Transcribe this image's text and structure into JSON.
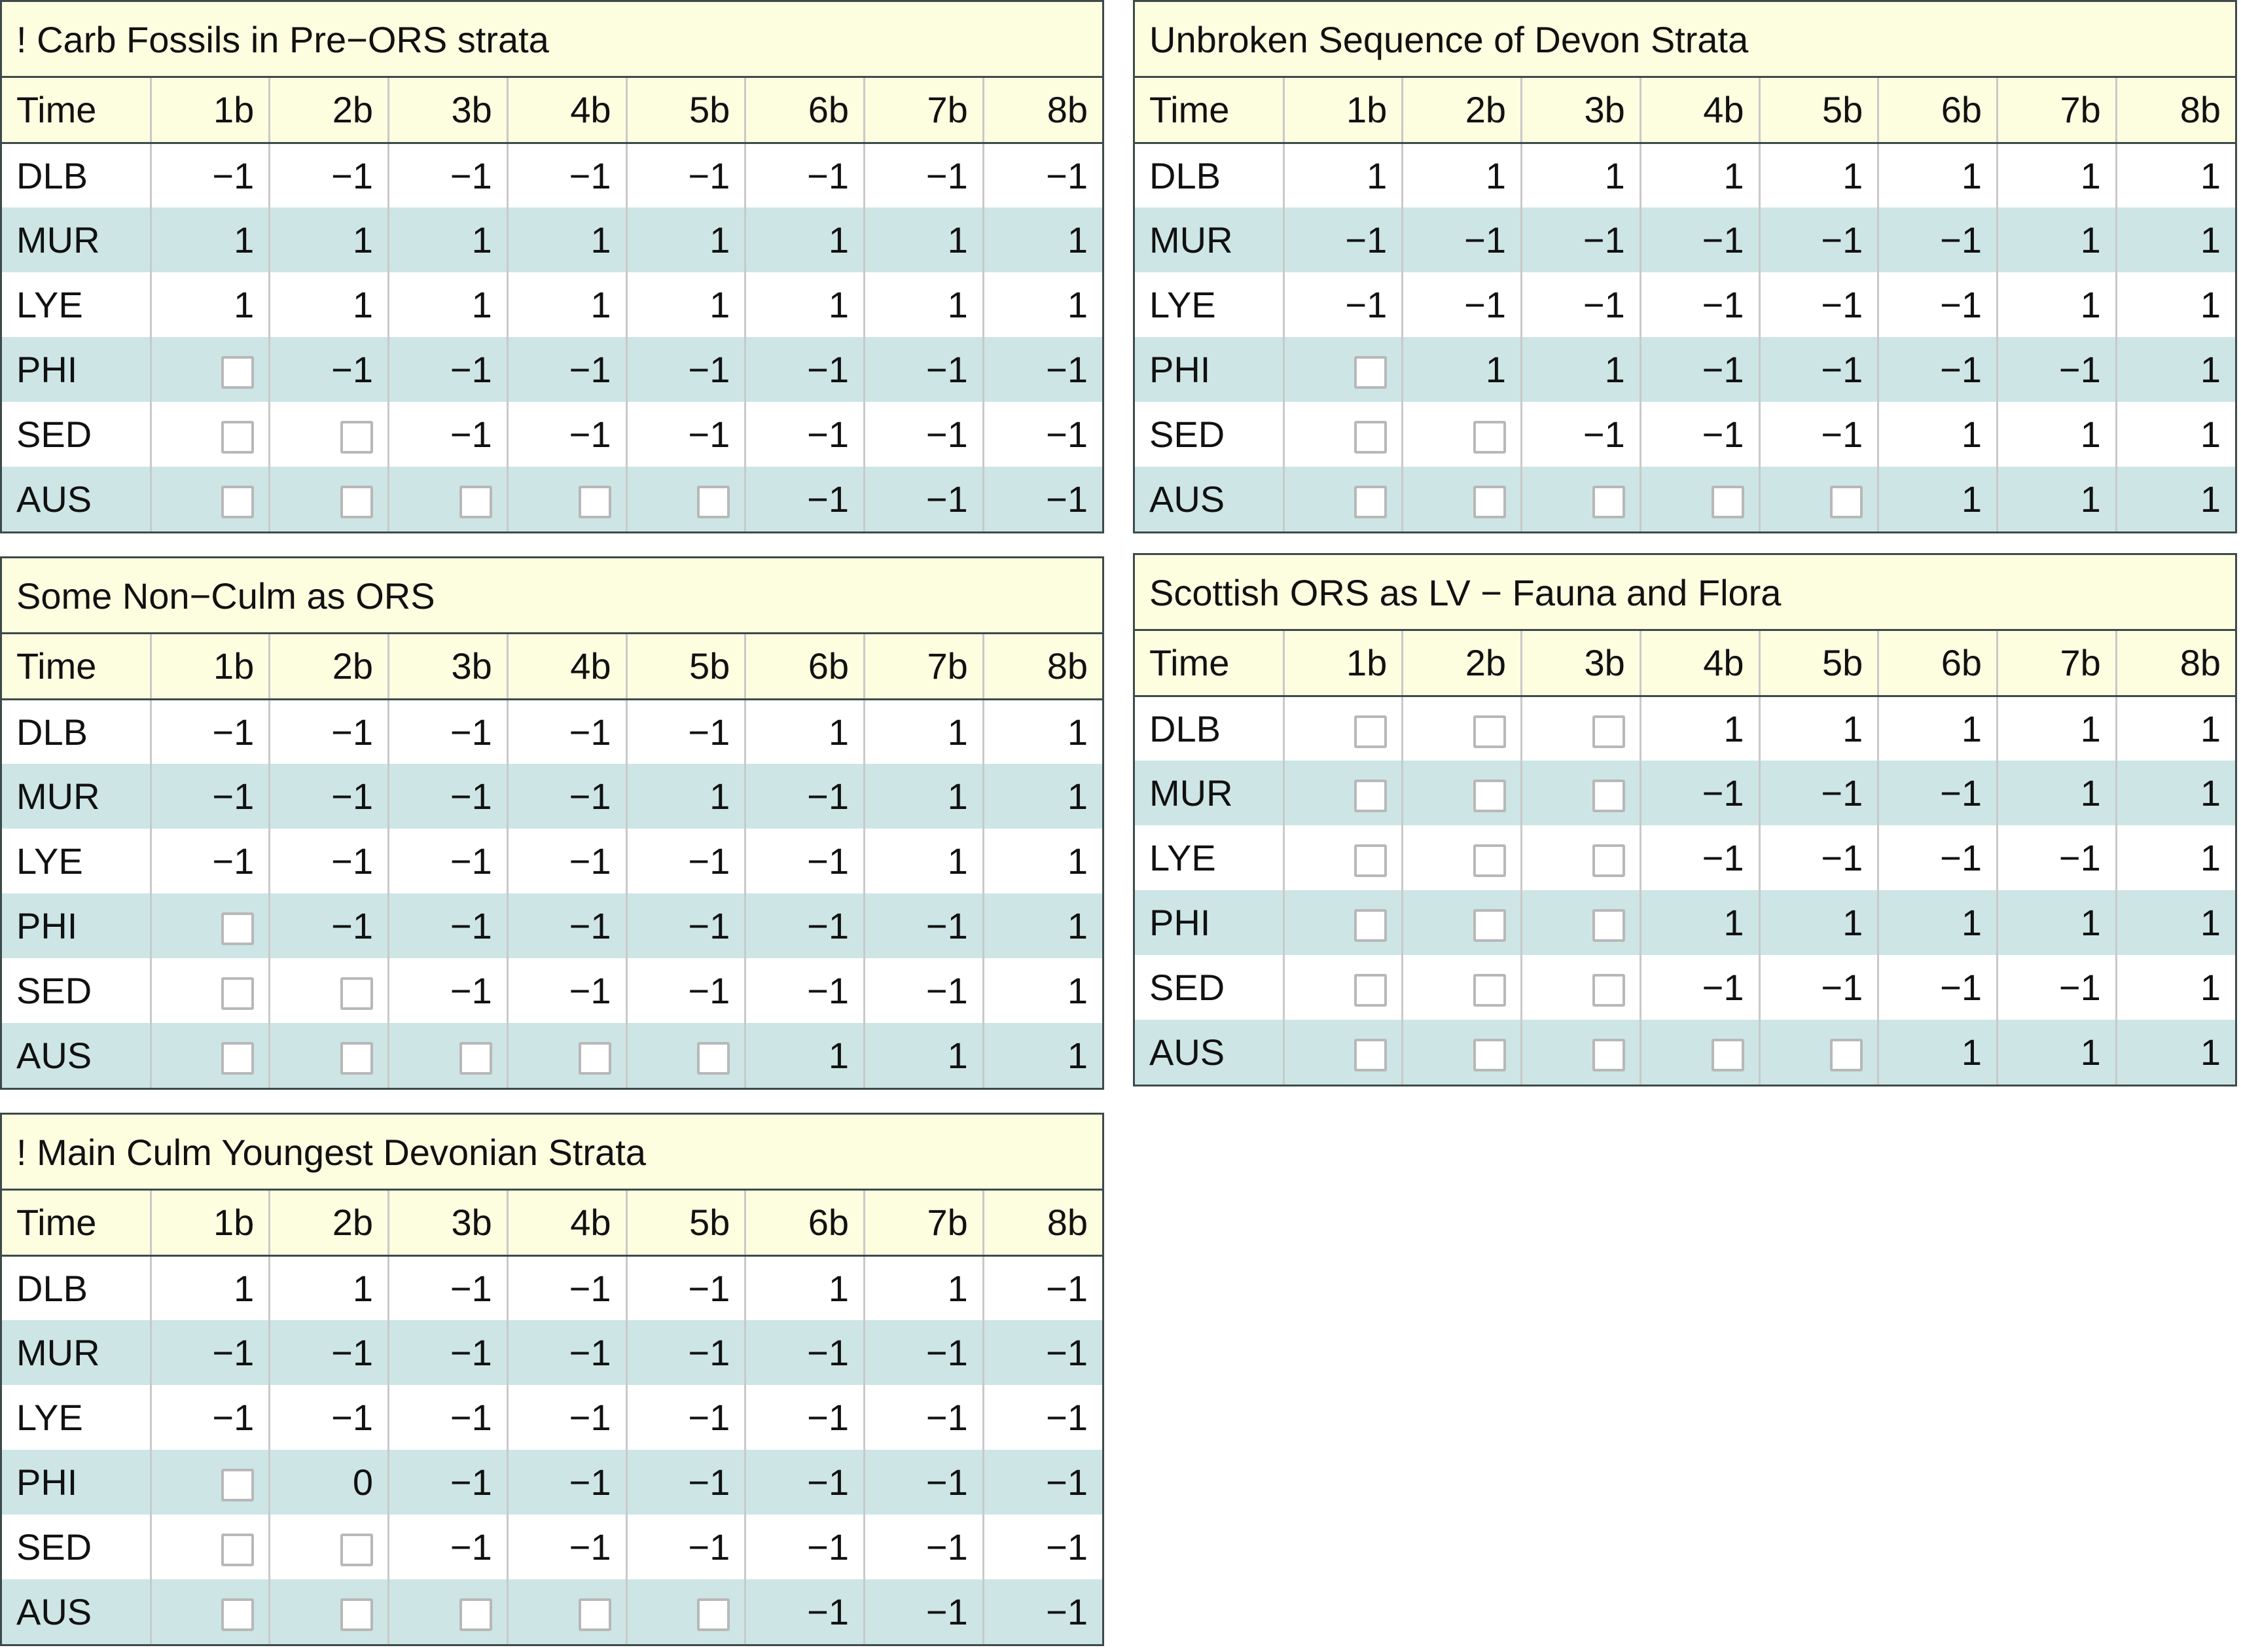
{
  "columns": [
    "Time",
    "1b",
    "2b",
    "3b",
    "4b",
    "5b",
    "6b",
    "7b",
    "8b"
  ],
  "tables": [
    {
      "title": "! Carb Fossils in Pre−ORS strata",
      "rows": [
        {
          "label": "DLB",
          "cells": [
            "−1",
            "−1",
            "−1",
            "−1",
            "−1",
            "−1",
            "−1",
            "−1"
          ]
        },
        {
          "label": "MUR",
          "cells": [
            "1",
            "1",
            "1",
            "1",
            "1",
            "1",
            "1",
            "1"
          ]
        },
        {
          "label": "LYE",
          "cells": [
            "1",
            "1",
            "1",
            "1",
            "1",
            "1",
            "1",
            "1"
          ]
        },
        {
          "label": "PHI",
          "cells": [
            null,
            "−1",
            "−1",
            "−1",
            "−1",
            "−1",
            "−1",
            "−1"
          ]
        },
        {
          "label": "SED",
          "cells": [
            null,
            null,
            "−1",
            "−1",
            "−1",
            "−1",
            "−1",
            "−1"
          ]
        },
        {
          "label": "AUS",
          "cells": [
            null,
            null,
            null,
            null,
            null,
            "−1",
            "−1",
            "−1"
          ]
        }
      ]
    },
    {
      "title": "Unbroken Sequence of Devon Strata",
      "rows": [
        {
          "label": "DLB",
          "cells": [
            "1",
            "1",
            "1",
            "1",
            "1",
            "1",
            "1",
            "1"
          ]
        },
        {
          "label": "MUR",
          "cells": [
            "−1",
            "−1",
            "−1",
            "−1",
            "−1",
            "−1",
            "1",
            "1"
          ]
        },
        {
          "label": "LYE",
          "cells": [
            "−1",
            "−1",
            "−1",
            "−1",
            "−1",
            "−1",
            "1",
            "1"
          ]
        },
        {
          "label": "PHI",
          "cells": [
            null,
            "1",
            "1",
            "−1",
            "−1",
            "−1",
            "−1",
            "1"
          ]
        },
        {
          "label": "SED",
          "cells": [
            null,
            null,
            "−1",
            "−1",
            "−1",
            "1",
            "1",
            "1"
          ]
        },
        {
          "label": "AUS",
          "cells": [
            null,
            null,
            null,
            null,
            null,
            "1",
            "1",
            "1"
          ]
        }
      ]
    },
    {
      "title": "Some Non−Culm as ORS",
      "rows": [
        {
          "label": "DLB",
          "cells": [
            "−1",
            "−1",
            "−1",
            "−1",
            "−1",
            "1",
            "1",
            "1"
          ]
        },
        {
          "label": "MUR",
          "cells": [
            "−1",
            "−1",
            "−1",
            "−1",
            "1",
            "−1",
            "1",
            "1"
          ]
        },
        {
          "label": "LYE",
          "cells": [
            "−1",
            "−1",
            "−1",
            "−1",
            "−1",
            "−1",
            "1",
            "1"
          ]
        },
        {
          "label": "PHI",
          "cells": [
            null,
            "−1",
            "−1",
            "−1",
            "−1",
            "−1",
            "−1",
            "1"
          ]
        },
        {
          "label": "SED",
          "cells": [
            null,
            null,
            "−1",
            "−1",
            "−1",
            "−1",
            "−1",
            "1"
          ]
        },
        {
          "label": "AUS",
          "cells": [
            null,
            null,
            null,
            null,
            null,
            "1",
            "1",
            "1"
          ]
        }
      ]
    },
    {
      "title": "Scottish ORS as LV − Fauna and Flora",
      "rows": [
        {
          "label": "DLB",
          "cells": [
            null,
            null,
            null,
            "1",
            "1",
            "1",
            "1",
            "1"
          ]
        },
        {
          "label": "MUR",
          "cells": [
            null,
            null,
            null,
            "−1",
            "−1",
            "−1",
            "1",
            "1"
          ]
        },
        {
          "label": "LYE",
          "cells": [
            null,
            null,
            null,
            "−1",
            "−1",
            "−1",
            "−1",
            "1"
          ]
        },
        {
          "label": "PHI",
          "cells": [
            null,
            null,
            null,
            "1",
            "1",
            "1",
            "1",
            "1"
          ]
        },
        {
          "label": "SED",
          "cells": [
            null,
            null,
            null,
            "−1",
            "−1",
            "−1",
            "−1",
            "1"
          ]
        },
        {
          "label": "AUS",
          "cells": [
            null,
            null,
            null,
            null,
            null,
            "1",
            "1",
            "1"
          ]
        }
      ]
    },
    {
      "title": "! Main Culm Youngest Devonian Strata",
      "rows": [
        {
          "label": "DLB",
          "cells": [
            "1",
            "1",
            "−1",
            "−1",
            "−1",
            "1",
            "1",
            "−1"
          ]
        },
        {
          "label": "MUR",
          "cells": [
            "−1",
            "−1",
            "−1",
            "−1",
            "−1",
            "−1",
            "−1",
            "−1"
          ]
        },
        {
          "label": "LYE",
          "cells": [
            "−1",
            "−1",
            "−1",
            "−1",
            "−1",
            "−1",
            "−1",
            "−1"
          ]
        },
        {
          "label": "PHI",
          "cells": [
            null,
            "0",
            "−1",
            "−1",
            "−1",
            "−1",
            "−1",
            "−1"
          ]
        },
        {
          "label": "SED",
          "cells": [
            null,
            null,
            "−1",
            "−1",
            "−1",
            "−1",
            "−1",
            "−1"
          ]
        },
        {
          "label": "AUS",
          "cells": [
            null,
            null,
            null,
            null,
            null,
            "−1",
            "−1",
            "−1"
          ]
        }
      ]
    }
  ]
}
